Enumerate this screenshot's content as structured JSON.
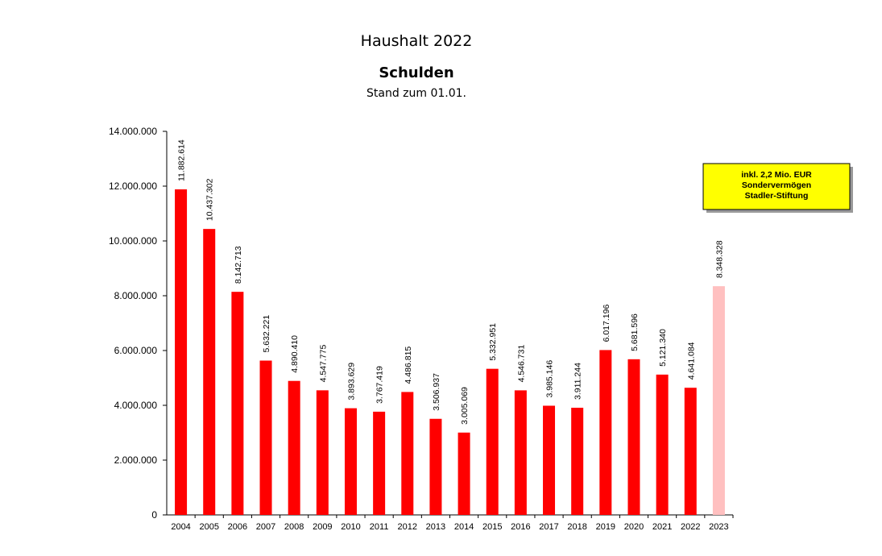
{
  "chart_data": {
    "type": "bar",
    "title": "Haushalt 2022",
    "subtitle": "Schulden",
    "note": "Stand zum 01.01.",
    "categories": [
      "2004",
      "2005",
      "2006",
      "2007",
      "2008",
      "2009",
      "2010",
      "2011",
      "2012",
      "2013",
      "2014",
      "2015",
      "2016",
      "2017",
      "2018",
      "2019",
      "2020",
      "2021",
      "2022",
      "2023"
    ],
    "values": [
      11882614,
      10437302,
      8142713,
      5632221,
      4890410,
      4547775,
      3893629,
      3767419,
      4486815,
      3506937,
      3005069,
      5332951,
      4546731,
      3985146,
      3911244,
      6017196,
      5681596,
      5121340,
      4641084,
      8348328
    ],
    "value_labels": [
      "11.882.614",
      "10.437.302",
      "8.142.713",
      "5.632.221",
      "4.890.410",
      "4.547.775",
      "3.893.629",
      "3.767.419",
      "4.486.815",
      "3.506.937",
      "3.005.069",
      "5.332.951",
      "4.546.731",
      "3.985.146",
      "3.911.244",
      "6.017.196",
      "5.681.596",
      "5.121.340",
      "4.641.084",
      "8.348.328"
    ],
    "colors": [
      "#ff0000",
      "#ff0000",
      "#ff0000",
      "#ff0000",
      "#ff0000",
      "#ff0000",
      "#ff0000",
      "#ff0000",
      "#ff0000",
      "#ff0000",
      "#ff0000",
      "#ff0000",
      "#ff0000",
      "#ff0000",
      "#ff0000",
      "#ff0000",
      "#ff0000",
      "#ff0000",
      "#ff0000",
      "#ffc0c0"
    ],
    "ylim": [
      0,
      14000000
    ],
    "yticks": [
      0,
      {
        "value": 2000000,
        "label": "2.000.000"
      },
      {
        "value": 4000000,
        "label": "4.000.000"
      },
      {
        "value": 6000000,
        "label": "6.000.000"
      },
      {
        "value": 8000000,
        "label": "8.000.000"
      },
      {
        "value": 10000000,
        "label": "10.000.000"
      },
      {
        "value": 12000000,
        "label": "12.000.000"
      },
      {
        "value": 14000000,
        "label": "14.000.000"
      }
    ],
    "grid": false,
    "annotation": [
      "inkl. 2,2 Mio. EUR",
      "Sondervermögen",
      "Stadler-Stiftung"
    ]
  }
}
